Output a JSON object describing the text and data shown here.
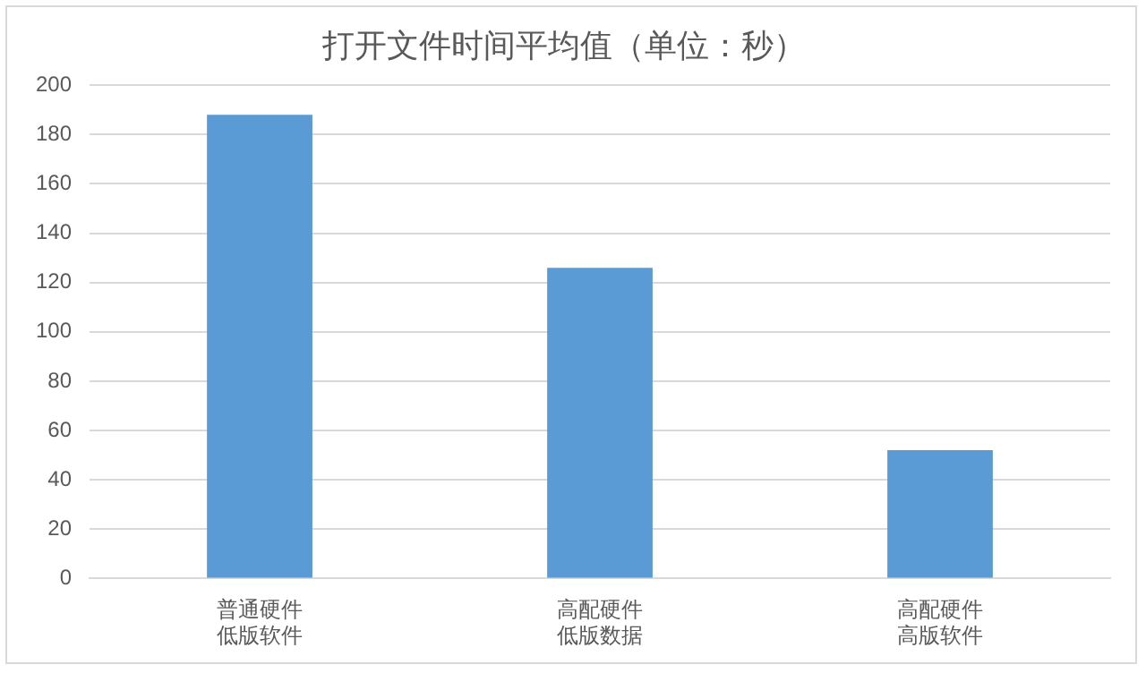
{
  "chart_data": {
    "type": "bar",
    "title": "打开文件时间平均值（单位：秒）",
    "categories": [
      "普通硬件低版软件",
      "高配硬件低版数据",
      "高配硬件高版软件"
    ],
    "values": [
      188,
      126,
      52
    ],
    "color": "#5b9bd5",
    "ylim": [
      0,
      200
    ],
    "yticks": [
      0,
      20,
      40,
      60,
      80,
      100,
      120,
      140,
      160,
      180,
      200
    ],
    "grid": "y",
    "legend": false
  }
}
